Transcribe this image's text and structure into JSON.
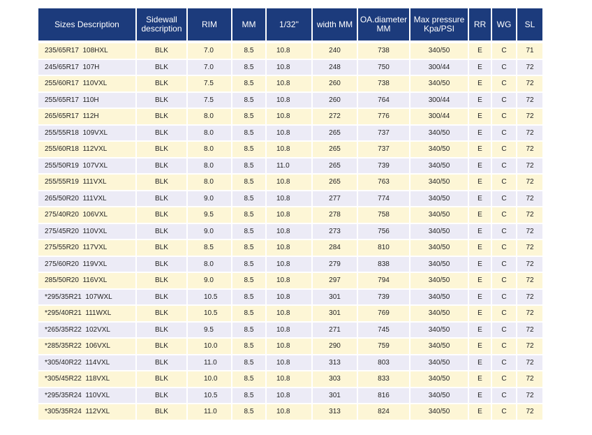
{
  "table": {
    "headers": [
      "Sizes Description",
      "Sidewall\ndescription",
      "RIM",
      "MM",
      "1/32'' ",
      "width MM",
      "OA.diameter\nMM",
      "Max pressure\nKpa/PSI",
      "RR",
      "WG",
      "SL"
    ],
    "rows": [
      [
        "235/65R17  108HXL",
        "BLK",
        "7.0",
        "8.5",
        "10.8",
        "240",
        "738",
        "340/50",
        "E",
        "C",
        "71"
      ],
      [
        "245/65R17  107H",
        "BLK",
        "7.0",
        "8.5",
        "10.8",
        "248",
        "750",
        "300/44",
        "E",
        "C",
        "72"
      ],
      [
        "255/60R17  110VXL",
        "BLK",
        "7.5",
        "8.5",
        "10.8",
        "260",
        "738",
        "340/50",
        "E",
        "C",
        "72"
      ],
      [
        "255/65R17  110H",
        "BLK",
        "7.5",
        "8.5",
        "10.8",
        "260",
        "764",
        "300/44",
        "E",
        "C",
        "72"
      ],
      [
        "265/65R17  112H",
        "BLK",
        "8.0",
        "8.5",
        "10.8",
        "272",
        "776",
        "300/44",
        "E",
        "C",
        "72"
      ],
      [
        "255/55R18  109VXL",
        "BLK",
        "8.0",
        "8.5",
        "10.8",
        "265",
        "737",
        "340/50",
        "E",
        "C",
        "72"
      ],
      [
        "255/60R18  112VXL",
        "BLK",
        "8.0",
        "8.5",
        "10.8",
        "265",
        "737",
        "340/50",
        "E",
        "C",
        "72"
      ],
      [
        "255/50R19  107VXL",
        "BLK",
        "8.0",
        "8.5",
        "11.0",
        "265",
        "739",
        "340/50",
        "E",
        "C",
        "72"
      ],
      [
        "255/55R19  111VXL",
        "BLK",
        "8.0",
        "8.5",
        "10.8",
        "265",
        "763",
        "340/50",
        "E",
        "C",
        "72"
      ],
      [
        "265/50R20  111VXL",
        "BLK",
        "9.0",
        "8.5",
        "10.8",
        "277",
        "774",
        "340/50",
        "E",
        "C",
        "72"
      ],
      [
        "275/40R20  106VXL",
        "BLK",
        "9.5",
        "8.5",
        "10.8",
        "278",
        "758",
        "340/50",
        "E",
        "C",
        "72"
      ],
      [
        "275/45R20  110VXL",
        "BLK",
        "9.0",
        "8.5",
        "10.8",
        "273",
        "756",
        "340/50",
        "E",
        "C",
        "72"
      ],
      [
        "275/55R20  117VXL",
        "BLK",
        "8.5",
        "8.5",
        "10.8",
        "284",
        "810",
        "340/50",
        "E",
        "C",
        "72"
      ],
      [
        "275/60R20  119VXL",
        "BLK",
        "8.0",
        "8.5",
        "10.8",
        "279",
        "838",
        "340/50",
        "E",
        "C",
        "72"
      ],
      [
        "285/50R20  116VXL",
        "BLK",
        "9.0",
        "8.5",
        "10.8",
        "297",
        "794",
        "340/50",
        "E",
        "C",
        "72"
      ],
      [
        "*295/35R21  107WXL",
        "BLK",
        "10.5",
        "8.5",
        "10.8",
        "301",
        "739",
        "340/50",
        "E",
        "C",
        "72"
      ],
      [
        "*295/40R21  111WXL",
        "BLK",
        "10.5",
        "8.5",
        "10.8",
        "301",
        "769",
        "340/50",
        "E",
        "C",
        "72"
      ],
      [
        "*265/35R22  102VXL",
        "BLK",
        "9.5",
        "8.5",
        "10.8",
        "271",
        "745",
        "340/50",
        "E",
        "C",
        "72"
      ],
      [
        "*285/35R22  106VXL",
        "BLK",
        "10.0",
        "8.5",
        "10.8",
        "290",
        "759",
        "340/50",
        "E",
        "C",
        "72"
      ],
      [
        "*305/40R22  114VXL",
        "BLK",
        "11.0",
        "8.5",
        "10.8",
        "313",
        "803",
        "340/50",
        "E",
        "C",
        "72"
      ],
      [
        "*305/45R22  118VXL",
        "BLK",
        "10.0",
        "8.5",
        "10.8",
        "303",
        "833",
        "340/50",
        "E",
        "C",
        "72"
      ],
      [
        "*295/35R24  110VXL",
        "BLK",
        "10.5",
        "8.5",
        "10.8",
        "301",
        "816",
        "340/50",
        "E",
        "C",
        "72"
      ],
      [
        "*305/35R24  112VXL",
        "BLK",
        "11.0",
        "8.5",
        "10.8",
        "313",
        "824",
        "340/50",
        "E",
        "C",
        "72"
      ]
    ]
  },
  "colors": {
    "header_bg": "#1c3b7c",
    "header_text": "#ffffff",
    "row_odd": "#fdf6d6",
    "row_even": "#ecebf6"
  }
}
